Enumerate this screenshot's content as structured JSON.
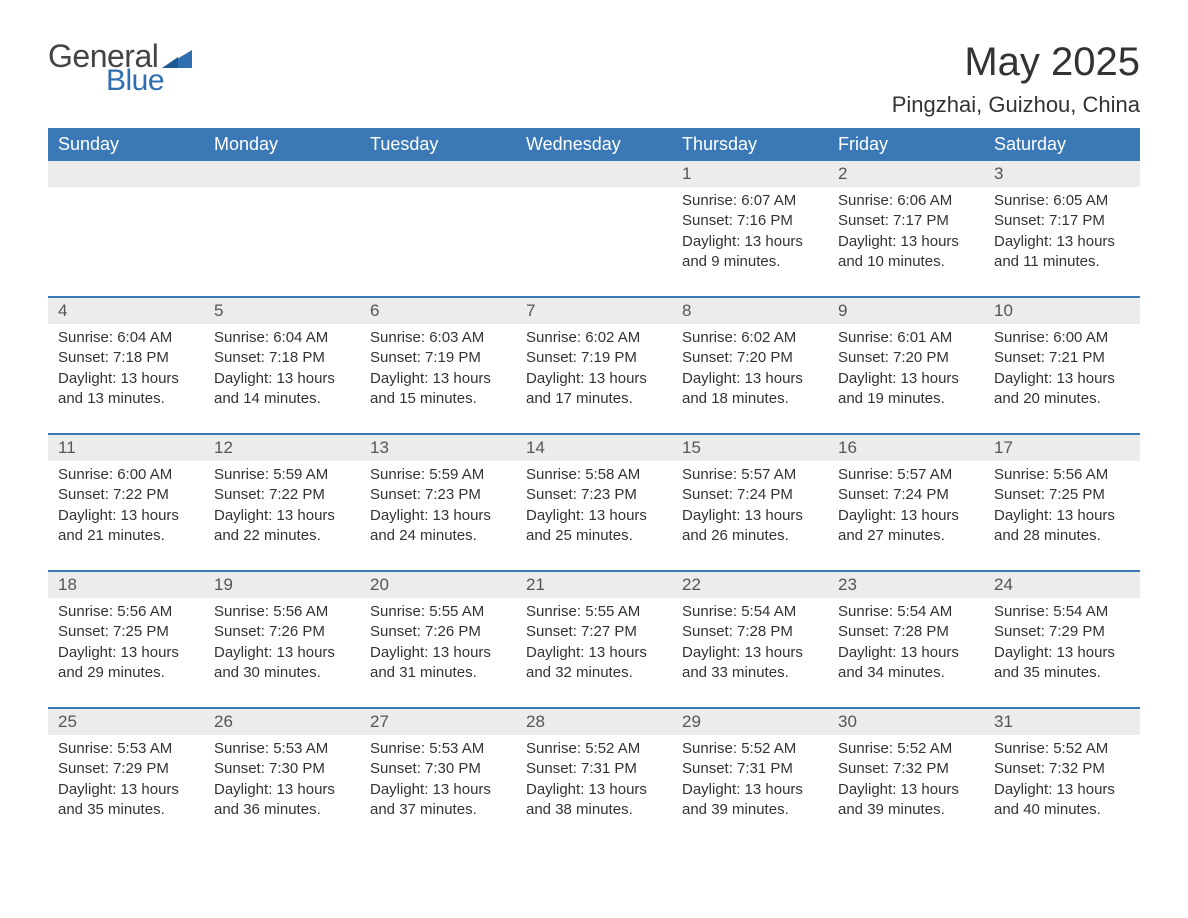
{
  "logo": {
    "general": "General",
    "blue": "Blue"
  },
  "title": "May 2025",
  "location": "Pingzhai, Guizhou, China",
  "colors": {
    "header_bg": "#3a78b6",
    "header_text": "#ffffff",
    "daynum_bg": "#ececec",
    "daynum_text": "#555555",
    "body_text": "#333333",
    "rule": "#3a78b6",
    "logo_gray": "#444444",
    "logo_blue": "#2f6fb0"
  },
  "weekdays": [
    "Sunday",
    "Monday",
    "Tuesday",
    "Wednesday",
    "Thursday",
    "Friday",
    "Saturday"
  ],
  "weeks": [
    [
      null,
      null,
      null,
      null,
      {
        "n": "1",
        "sr": "6:07 AM",
        "ss": "7:16 PM",
        "dl": "13 hours and 9 minutes."
      },
      {
        "n": "2",
        "sr": "6:06 AM",
        "ss": "7:17 PM",
        "dl": "13 hours and 10 minutes."
      },
      {
        "n": "3",
        "sr": "6:05 AM",
        "ss": "7:17 PM",
        "dl": "13 hours and 11 minutes."
      }
    ],
    [
      {
        "n": "4",
        "sr": "6:04 AM",
        "ss": "7:18 PM",
        "dl": "13 hours and 13 minutes."
      },
      {
        "n": "5",
        "sr": "6:04 AM",
        "ss": "7:18 PM",
        "dl": "13 hours and 14 minutes."
      },
      {
        "n": "6",
        "sr": "6:03 AM",
        "ss": "7:19 PM",
        "dl": "13 hours and 15 minutes."
      },
      {
        "n": "7",
        "sr": "6:02 AM",
        "ss": "7:19 PM",
        "dl": "13 hours and 17 minutes."
      },
      {
        "n": "8",
        "sr": "6:02 AM",
        "ss": "7:20 PM",
        "dl": "13 hours and 18 minutes."
      },
      {
        "n": "9",
        "sr": "6:01 AM",
        "ss": "7:20 PM",
        "dl": "13 hours and 19 minutes."
      },
      {
        "n": "10",
        "sr": "6:00 AM",
        "ss": "7:21 PM",
        "dl": "13 hours and 20 minutes."
      }
    ],
    [
      {
        "n": "11",
        "sr": "6:00 AM",
        "ss": "7:22 PM",
        "dl": "13 hours and 21 minutes."
      },
      {
        "n": "12",
        "sr": "5:59 AM",
        "ss": "7:22 PM",
        "dl": "13 hours and 22 minutes."
      },
      {
        "n": "13",
        "sr": "5:59 AM",
        "ss": "7:23 PM",
        "dl": "13 hours and 24 minutes."
      },
      {
        "n": "14",
        "sr": "5:58 AM",
        "ss": "7:23 PM",
        "dl": "13 hours and 25 minutes."
      },
      {
        "n": "15",
        "sr": "5:57 AM",
        "ss": "7:24 PM",
        "dl": "13 hours and 26 minutes."
      },
      {
        "n": "16",
        "sr": "5:57 AM",
        "ss": "7:24 PM",
        "dl": "13 hours and 27 minutes."
      },
      {
        "n": "17",
        "sr": "5:56 AM",
        "ss": "7:25 PM",
        "dl": "13 hours and 28 minutes."
      }
    ],
    [
      {
        "n": "18",
        "sr": "5:56 AM",
        "ss": "7:25 PM",
        "dl": "13 hours and 29 minutes."
      },
      {
        "n": "19",
        "sr": "5:56 AM",
        "ss": "7:26 PM",
        "dl": "13 hours and 30 minutes."
      },
      {
        "n": "20",
        "sr": "5:55 AM",
        "ss": "7:26 PM",
        "dl": "13 hours and 31 minutes."
      },
      {
        "n": "21",
        "sr": "5:55 AM",
        "ss": "7:27 PM",
        "dl": "13 hours and 32 minutes."
      },
      {
        "n": "22",
        "sr": "5:54 AM",
        "ss": "7:28 PM",
        "dl": "13 hours and 33 minutes."
      },
      {
        "n": "23",
        "sr": "5:54 AM",
        "ss": "7:28 PM",
        "dl": "13 hours and 34 minutes."
      },
      {
        "n": "24",
        "sr": "5:54 AM",
        "ss": "7:29 PM",
        "dl": "13 hours and 35 minutes."
      }
    ],
    [
      {
        "n": "25",
        "sr": "5:53 AM",
        "ss": "7:29 PM",
        "dl": "13 hours and 35 minutes."
      },
      {
        "n": "26",
        "sr": "5:53 AM",
        "ss": "7:30 PM",
        "dl": "13 hours and 36 minutes."
      },
      {
        "n": "27",
        "sr": "5:53 AM",
        "ss": "7:30 PM",
        "dl": "13 hours and 37 minutes."
      },
      {
        "n": "28",
        "sr": "5:52 AM",
        "ss": "7:31 PM",
        "dl": "13 hours and 38 minutes."
      },
      {
        "n": "29",
        "sr": "5:52 AM",
        "ss": "7:31 PM",
        "dl": "13 hours and 39 minutes."
      },
      {
        "n": "30",
        "sr": "5:52 AM",
        "ss": "7:32 PM",
        "dl": "13 hours and 39 minutes."
      },
      {
        "n": "31",
        "sr": "5:52 AM",
        "ss": "7:32 PM",
        "dl": "13 hours and 40 minutes."
      }
    ]
  ],
  "labels": {
    "sunrise": "Sunrise: ",
    "sunset": "Sunset: ",
    "daylight": "Daylight: "
  }
}
